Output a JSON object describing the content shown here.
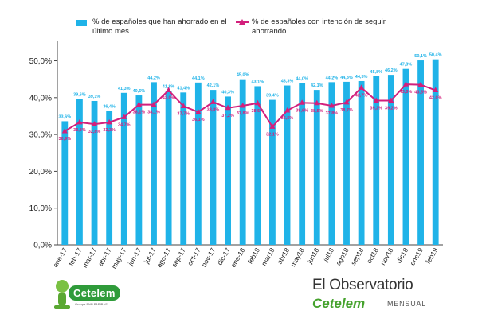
{
  "chart_data": {
    "type": "bar",
    "categories": [
      "ene-17",
      "feb-17",
      "mar-17",
      "abr-17",
      "may-17",
      "jun-17",
      "jul-17",
      "ago-17",
      "sep-17",
      "oct-17",
      "nov-17",
      "dic-17",
      "ene-18",
      "feb18",
      "mar18",
      "abr18",
      "may18",
      "jun18",
      "jul18",
      "ago18",
      "sep18",
      "oct18",
      "nov18",
      "dic18",
      "ene19",
      "feb19"
    ],
    "series": [
      {
        "name": "% de españoles que han ahorrado en el último mes",
        "type": "bar",
        "color": "#1fb3e8",
        "values": [
          33.6,
          39.6,
          39.1,
          36.4,
          41.3,
          40.6,
          44.2,
          41.8,
          41.4,
          44.1,
          42.1,
          40.3,
          45.0,
          43.1,
          39.4,
          43.3,
          44.0,
          42.1,
          44.2,
          44.3,
          44.5,
          45.8,
          46.2,
          47.8,
          50.1,
          50.4
        ],
        "labels": [
          "33,6%",
          "39,6%",
          "39,1%",
          "36,4%",
          "41,3%",
          "40,6%",
          "44,2%",
          "41,8%",
          "41,4%",
          "44,1%",
          "42,1%",
          "40,3%",
          "45,0%",
          "43,1%",
          "39,4%",
          "43,3%",
          "44,0%",
          "42,1%",
          "44,2%",
          "44,3%",
          "44,5%",
          "45,8%",
          "46,2%",
          "47,8%",
          "50,1%",
          "50,4%"
        ]
      },
      {
        "name": "% de españoles con intención de seguir ahorrando",
        "type": "line",
        "color": "#d31f7c",
        "values": [
          30.9,
          33.3,
          32.8,
          33.3,
          34.7,
          38.1,
          38.1,
          42.0,
          37.7,
          36.1,
          38.8,
          37.2,
          37.8,
          38.5,
          32.1,
          36.5,
          38.6,
          38.5,
          37.8,
          38.7,
          42.7,
          39.2,
          39.2,
          43.6,
          43.5,
          42.0
        ],
        "labels": [
          "30,9%",
          "33,3%",
          "32,8%",
          "33,3%",
          "34,7%",
          "38,1%",
          "38,1%",
          "42,0%",
          "37,7%",
          "36,1%",
          "38,8%",
          "37,2%",
          "37,8%",
          "38,5%",
          "32,1%",
          "36,5%",
          "38,6%",
          "38,5%",
          "37,8%",
          "38,7%",
          "42,7%",
          "39,2%",
          "39,2%",
          "43,6%",
          "43,5%",
          "42,0%"
        ]
      }
    ],
    "yticks": [
      "0,0%",
      "10,0%",
      "20,0%",
      "30,0%",
      "40,0%",
      "50,0%"
    ],
    "ylim": [
      0,
      54
    ],
    "grid": false,
    "legend_position": "top",
    "title": "",
    "xlabel": "",
    "ylabel": ""
  },
  "legend": {
    "bars_label": "% de españoles que han ahorrado en el último mes",
    "line_label": "% de españoles con intención de seguir ahorrando"
  },
  "logos": {
    "cetelem": "Cetelem",
    "cetelem_tagline": "Groupe BNP PARIBAS",
    "observatorio": "El Observatorio",
    "observatorio_brand": "Cetelem",
    "observatorio_sub": "MENSUAL"
  }
}
